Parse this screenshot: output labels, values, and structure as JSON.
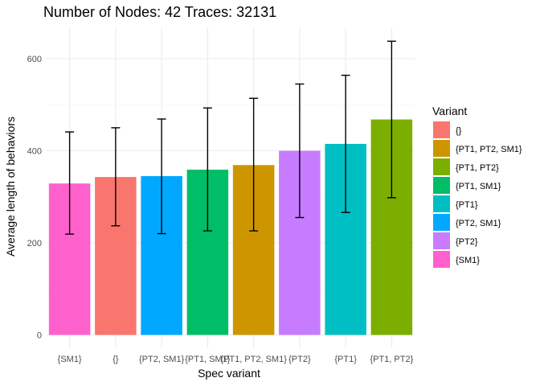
{
  "chart_data": {
    "type": "bar",
    "title": "Number of Nodes: 42 Traces: 32131",
    "xlabel": "Spec variant",
    "ylabel": "Average length of behaviors",
    "ylim": [
      0,
      660
    ],
    "yticks": [
      0,
      200,
      400,
      600
    ],
    "grid": true,
    "legend": {
      "title": "Variant",
      "position": "right"
    },
    "categories": [
      "{SM1}",
      "{}",
      "{PT2, SM1}",
      "{PT1, SM1}",
      "{PT1, PT2, SM1}",
      "{PT2}",
      "{PT1}",
      "{PT1, PT2}"
    ],
    "values": [
      329,
      343,
      345,
      359,
      369,
      400,
      415,
      468
    ],
    "error_low": [
      219,
      237,
      220,
      226,
      226,
      255,
      266,
      298
    ],
    "error_high": [
      441,
      450,
      469,
      493,
      514,
      545,
      564,
      638
    ],
    "colors": {
      "{}": "#F8766D",
      "{PT1, PT2, SM1}": "#CD9600",
      "{PT1, PT2}": "#7CAE00",
      "{PT1, SM1}": "#00BE67",
      "{PT1}": "#00BFC4",
      "{PT2, SM1}": "#00A9FF",
      "{PT2}": "#C77CFF",
      "{SM1}": "#FF61CC"
    },
    "legend_order": [
      "{}",
      "{PT1, PT2, SM1}",
      "{PT1, PT2}",
      "{PT1, SM1}",
      "{PT1}",
      "{PT2, SM1}",
      "{PT2}",
      "{SM1}"
    ]
  }
}
